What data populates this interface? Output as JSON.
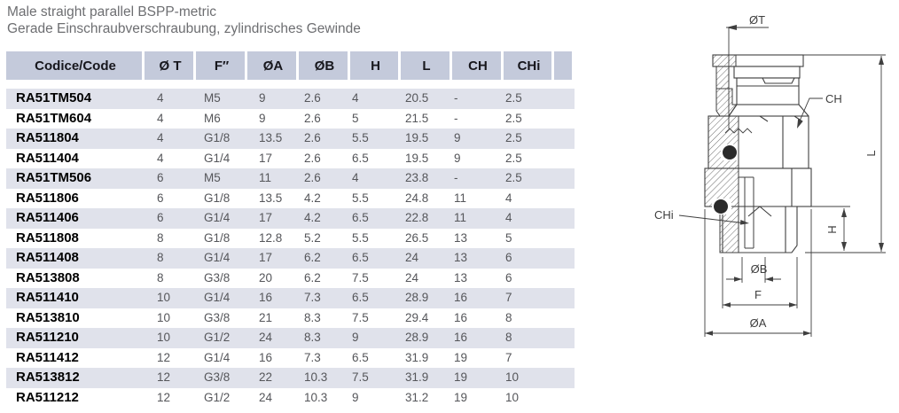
{
  "title": {
    "line1": "Male straight parallel BSPP-metric",
    "line2": "Gerade Einschraubverschraubung, zylindrisches Gewinde"
  },
  "table": {
    "columns": [
      "Codice/Code",
      "Ø T",
      "F″",
      "ØA",
      "ØB",
      "H",
      "L",
      "CH",
      "CHi",
      ""
    ],
    "rows": [
      [
        "RA51TM504",
        "4",
        "M5",
        "9",
        "2.6",
        "4",
        "20.5",
        "-",
        "2.5"
      ],
      [
        "RA51TM604",
        "4",
        "M6",
        "9",
        "2.6",
        "5",
        "21.5",
        "-",
        "2.5"
      ],
      [
        "RA511804",
        "4",
        "G1/8",
        "13.5",
        "2.6",
        "5.5",
        "19.5",
        "9",
        "2.5"
      ],
      [
        "RA511404",
        "4",
        "G1/4",
        "17",
        "2.6",
        "6.5",
        "19.5",
        "9",
        "2.5"
      ],
      [
        "RA51TM506",
        "6",
        "M5",
        "11",
        "2.6",
        "4",
        "23.8",
        "-",
        "2.5"
      ],
      [
        "RA511806",
        "6",
        "G1/8",
        "13.5",
        "4.2",
        "5.5",
        "24.8",
        "11",
        "4"
      ],
      [
        "RA511406",
        "6",
        "G1/4",
        "17",
        "4.2",
        "6.5",
        "22.8",
        "11",
        "4"
      ],
      [
        "RA511808",
        "8",
        "G1/8",
        "12.8",
        "5.2",
        "5.5",
        "26.5",
        "13",
        "5"
      ],
      [
        "RA511408",
        "8",
        "G1/4",
        "17",
        "6.2",
        "6.5",
        "24",
        "13",
        "6"
      ],
      [
        "RA513808",
        "8",
        "G3/8",
        "20",
        "6.2",
        "7.5",
        "24",
        "13",
        "6"
      ],
      [
        "RA511410",
        "10",
        "G1/4",
        "16",
        "7.3",
        "6.5",
        "28.9",
        "16",
        "7"
      ],
      [
        "RA513810",
        "10",
        "G3/8",
        "21",
        "8.3",
        "7.5",
        "29.4",
        "16",
        "8"
      ],
      [
        "RA511210",
        "10",
        "G1/2",
        "24",
        "8.3",
        "9",
        "28.9",
        "16",
        "8"
      ],
      [
        "RA511412",
        "12",
        "G1/4",
        "16",
        "7.3",
        "6.5",
        "31.9",
        "19",
        "7"
      ],
      [
        "RA513812",
        "12",
        "G3/8",
        "22",
        "10.3",
        "7.5",
        "31.9",
        "19",
        "10"
      ],
      [
        "RA511212",
        "12",
        "G1/2",
        "24",
        "10.3",
        "9",
        "31.2",
        "19",
        "10"
      ]
    ]
  },
  "drawing": {
    "labels": {
      "ot": "ØT",
      "ch": "CH",
      "l": "L",
      "chi": "CHi",
      "h": "H",
      "ob": "ØB",
      "f": "F",
      "oa": "ØA"
    }
  },
  "colors": {
    "header_bg": "#c4cadb",
    "stripe_bg": "#e0e2eb",
    "title_text": "#6d6e71",
    "header_text": "#17171d",
    "data_text": "#55565a",
    "code_text": "#000000",
    "drawing_line": "#3f3f3f"
  }
}
